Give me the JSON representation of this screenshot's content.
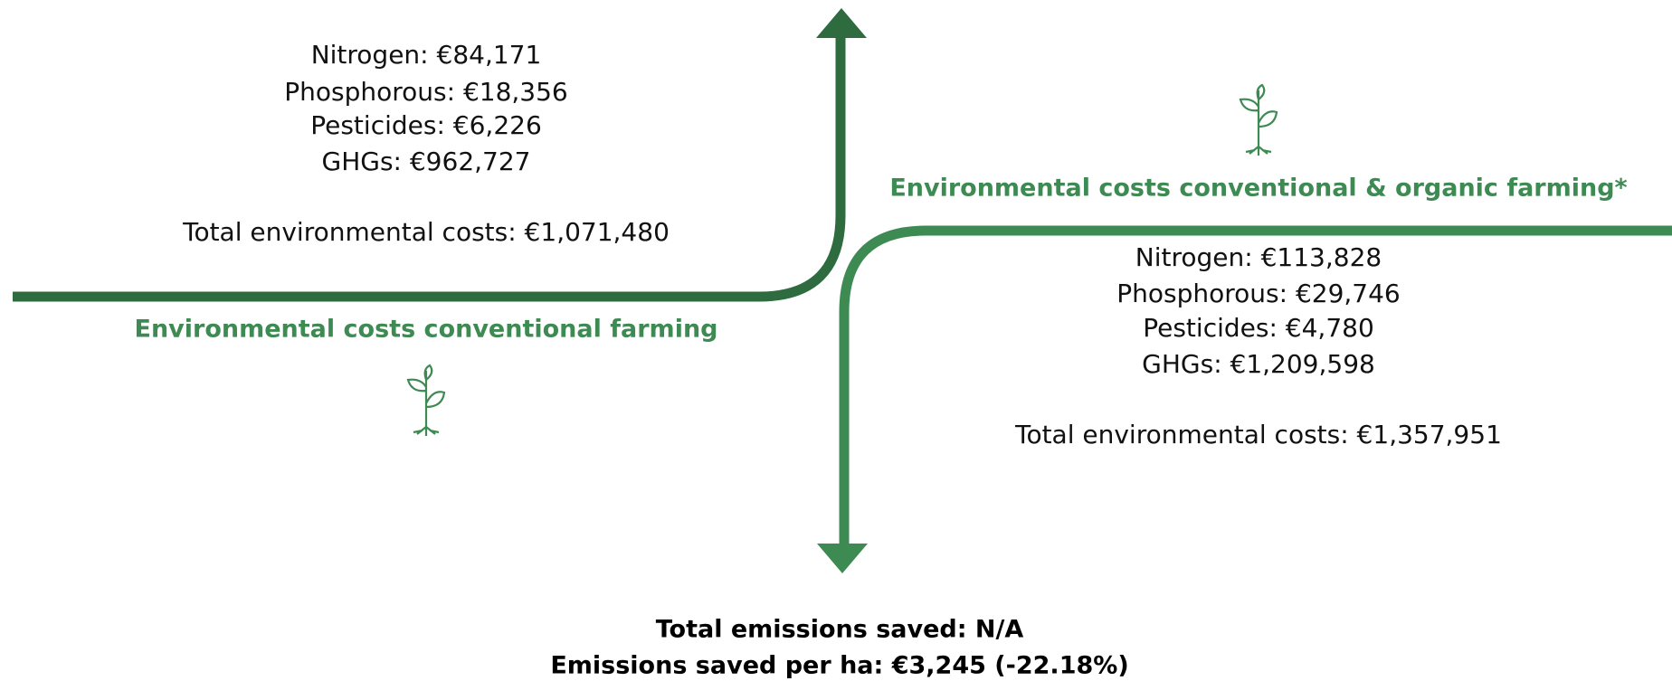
{
  "conventional": {
    "heading": "Environmental costs conventional farming",
    "lines": [
      "Nitrogen: €84,171",
      "Phosphorous: €18,356",
      "Pesticides: €6,226",
      "GHGs: €962,727"
    ],
    "total": "Total environmental costs: €1,071,480"
  },
  "organic": {
    "heading": "Environmental costs conventional & organic farming*",
    "lines": [
      "Nitrogen: €113,828",
      "Phosphorous: €29,746",
      "Pesticides: €4,780",
      "GHGs: €1,209,598"
    ],
    "total": "Total environmental costs: €1,357,951"
  },
  "summary": [
    "Total emissions saved: N/A",
    "Emissions saved per ha: €3,245 (-22.18%)"
  ]
}
